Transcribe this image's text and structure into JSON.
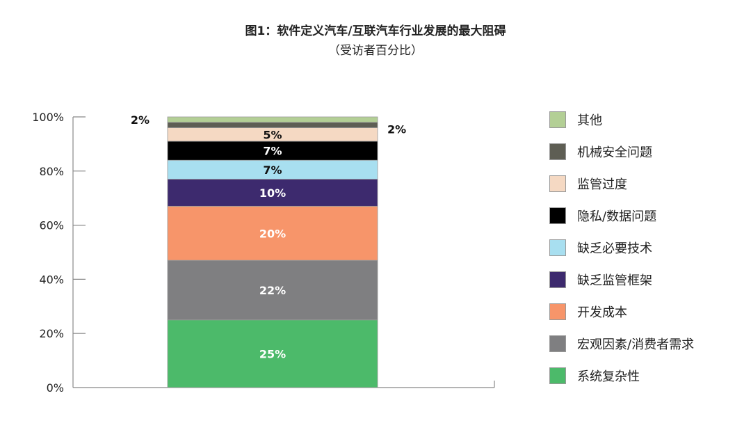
{
  "chart_data": {
    "type": "bar",
    "stacked": true,
    "title": "图1：软件定义汽车/互联汽车行业发展的最大阻碍",
    "subtitle": "（受访者百分比）",
    "categories": [
      ""
    ],
    "ylim": [
      0,
      100
    ],
    "yticks": [
      "0%",
      "20%",
      "40%",
      "60%",
      "80%",
      "100%"
    ],
    "legend_position": "right",
    "series": [
      {
        "name": "系统复杂性",
        "value": 25,
        "label": "25%",
        "color": "#4cba6a",
        "text_color": "#ffffff"
      },
      {
        "name": "宏观因素/消费者需求",
        "value": 22,
        "label": "22%",
        "color": "#7f7f81",
        "text_color": "#ffffff"
      },
      {
        "name": "开发成本",
        "value": 20,
        "label": "20%",
        "color": "#f7956a",
        "text_color": "#ffffff"
      },
      {
        "name": "缺乏监管框架",
        "value": 10,
        "label": "10%",
        "color": "#3d2a6e",
        "text_color": "#ffffff"
      },
      {
        "name": "缺乏必要技术",
        "value": 7,
        "label": "7%",
        "color": "#a8dff0",
        "text_color": "#111111"
      },
      {
        "name": "隐私/数据问题",
        "value": 7,
        "label": "7%",
        "color": "#000000",
        "text_color": "#ffffff"
      },
      {
        "name": "监管过度",
        "value": 5,
        "label": "5%",
        "color": "#f5d9c3",
        "text_color": "#111111"
      },
      {
        "name": "机械安全问题",
        "value": 2,
        "label": "2%",
        "color": "#5e5e54",
        "text_color": "#111111",
        "outside": "right"
      },
      {
        "name": "其他",
        "value": 2,
        "label": "2%",
        "color": "#b3cf95",
        "text_color": "#111111",
        "outside": "left"
      }
    ]
  }
}
